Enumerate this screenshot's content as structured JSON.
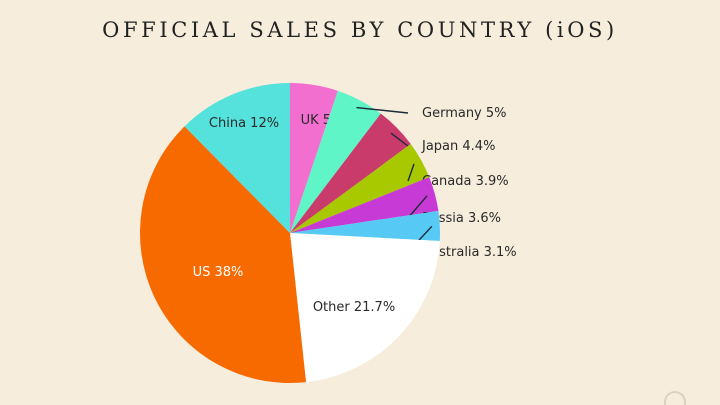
{
  "title": "OFFICIAL SALES BY COUNTRY (iOS)",
  "chart_data": {
    "type": "pie",
    "title": "OFFICIAL SALES BY COUNTRY (iOS)",
    "start_angle_deg": 0,
    "direction": "clockwise",
    "slices": [
      {
        "name": "UK",
        "value": 5,
        "label": "UK 5%",
        "color": "#f26fd0",
        "label_style": "inside"
      },
      {
        "name": "Germany",
        "value": 5,
        "label": "Germany 5%",
        "color": "#5ff5c6",
        "label_style": "callout"
      },
      {
        "name": "Japan",
        "value": 4.4,
        "label": "Japan 4.4%",
        "color": "#c83b6b",
        "label_style": "callout"
      },
      {
        "name": "Canada",
        "value": 3.9,
        "label": "Canada 3.9%",
        "color": "#a8c800",
        "label_style": "callout"
      },
      {
        "name": "Russia",
        "value": 3.6,
        "label": "Russia 3.6%",
        "color": "#c83ad6",
        "label_style": "callout"
      },
      {
        "name": "Australia",
        "value": 3.1,
        "label": "Australia 3.1%",
        "color": "#56caf5",
        "label_style": "callout"
      },
      {
        "name": "Other",
        "value": 21.7,
        "label": "Other 21.7%",
        "color": "#ffffff",
        "label_style": "inside"
      },
      {
        "name": "US",
        "value": 38,
        "label": "US 38%",
        "color": "#f76a00",
        "label_style": "inside"
      },
      {
        "name": "China",
        "value": 12,
        "label": "China 12%",
        "color": "#55e1dc",
        "label_style": "inside"
      }
    ]
  }
}
